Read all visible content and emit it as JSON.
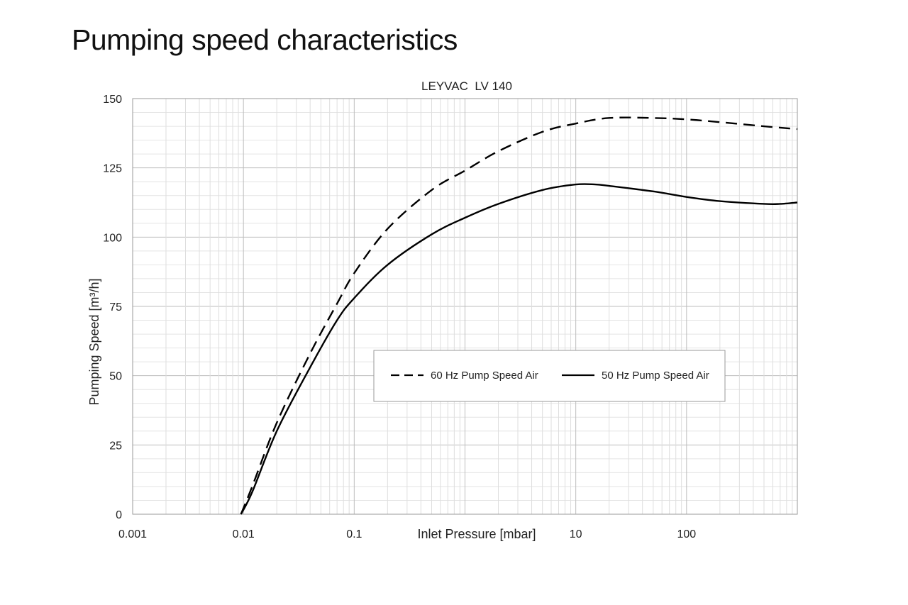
{
  "page": {
    "title": "Pumping speed characteristics"
  },
  "chart_data": {
    "type": "line",
    "title": "LEYVAC  LV 140",
    "xlabel": "Inlet Pressure [mbar]",
    "ylabel": "Pumping Speed [m³/h]",
    "x_scale": "log",
    "xlim": [
      0.001,
      1000
    ],
    "ylim": [
      0,
      150
    ],
    "x_ticks": [
      "0.001",
      "0.01",
      "0.1",
      "",
      "10",
      "100"
    ],
    "y_ticks": [
      "0",
      "25",
      "50",
      "75",
      "100",
      "125",
      "150"
    ],
    "grid": true,
    "legend_position": "center-right",
    "series": [
      {
        "name": "60 Hz Pump Speed Air",
        "style": "dashed",
        "color": "#000000",
        "x": [
          0.0095,
          0.012,
          0.02,
          0.04,
          0.07,
          0.1,
          0.2,
          0.5,
          1,
          2,
          5,
          10,
          20,
          50,
          100,
          200,
          500,
          1000
        ],
        "y": [
          0,
          10,
          33,
          58,
          76,
          87,
          103,
          117,
          124,
          131,
          138,
          141,
          143,
          143,
          142.5,
          141.5,
          140,
          139
        ]
      },
      {
        "name": "50 Hz Pump Speed Air",
        "style": "solid",
        "color": "#000000",
        "x": [
          0.0095,
          0.012,
          0.02,
          0.04,
          0.07,
          0.1,
          0.2,
          0.5,
          1,
          2,
          5,
          10,
          15,
          20,
          50,
          100,
          200,
          500,
          700,
          1000
        ],
        "y": [
          0,
          8,
          30,
          53,
          70,
          78,
          90,
          101,
          107,
          112,
          117,
          119,
          119,
          118.5,
          116.5,
          114.5,
          113,
          112,
          112,
          112.5
        ]
      }
    ]
  }
}
